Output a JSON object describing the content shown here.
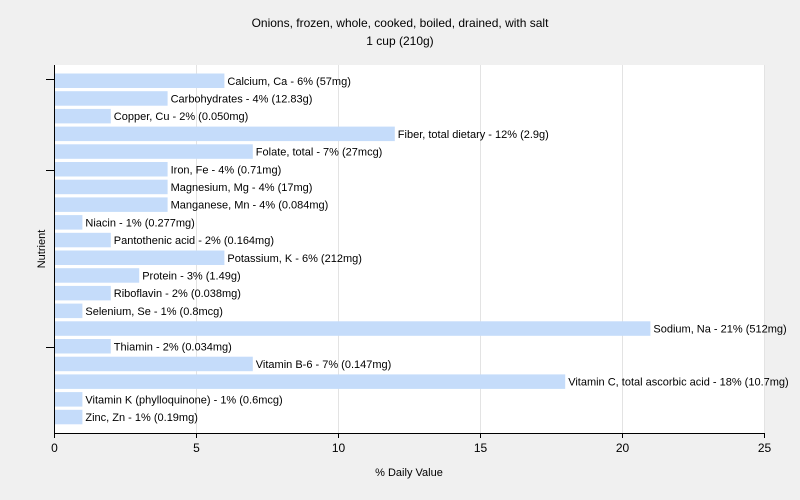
{
  "chart_data": {
    "type": "bar",
    "orientation": "horizontal",
    "title": "Onions, frozen, whole, cooked, boiled, drained, with salt",
    "subtitle": "1 cup (210g)",
    "xlabel": "% Daily Value",
    "ylabel": "Nutrient",
    "xlim": [
      0,
      25
    ],
    "xticks": [
      "0",
      "5",
      "10",
      "15",
      "20",
      "25"
    ],
    "grid": true,
    "bar_color": "#c5dcfa",
    "categories": [
      "Calcium, Ca",
      "Carbohydrates",
      "Copper, Cu",
      "Fiber, total dietary",
      "Folate, total",
      "Iron, Fe",
      "Magnesium, Mg",
      "Manganese, Mn",
      "Niacin",
      "Pantothenic acid",
      "Potassium, K",
      "Protein",
      "Riboflavin",
      "Selenium, Se",
      "Sodium, Na",
      "Thiamin",
      "Vitamin B-6",
      "Vitamin C, total ascorbic acid",
      "Vitamin K (phylloquinone)",
      "Zinc, Zn"
    ],
    "values": [
      6,
      4,
      2,
      12,
      7,
      4,
      4,
      4,
      1,
      2,
      6,
      3,
      2,
      1,
      21,
      2,
      7,
      18,
      1,
      1
    ],
    "labels": [
      "Calcium, Ca - 6% (57mg)",
      "Carbohydrates - 4% (12.83g)",
      "Copper, Cu - 2% (0.050mg)",
      "Fiber, total dietary - 12% (2.9g)",
      "Folate, total - 7% (27mcg)",
      "Iron, Fe - 4% (0.71mg)",
      "Magnesium, Mg - 4% (17mg)",
      "Manganese, Mn - 4% (0.084mg)",
      "Niacin - 1% (0.277mg)",
      "Pantothenic acid - 2% (0.164mg)",
      "Potassium, K - 6% (212mg)",
      "Protein - 3% (1.49g)",
      "Riboflavin - 2% (0.038mg)",
      "Selenium, Se - 1% (0.8mcg)",
      "Sodium, Na - 21% (512mg)",
      "Thiamin - 2% (0.034mg)",
      "Vitamin B-6 - 7% (0.147mg)",
      "Vitamin C, total ascorbic acid - 18% (10.7mg)",
      "Vitamin K (phylloquinone) - 1% (0.6mcg)",
      "Zinc, Zn - 1% (0.19mg)"
    ]
  }
}
